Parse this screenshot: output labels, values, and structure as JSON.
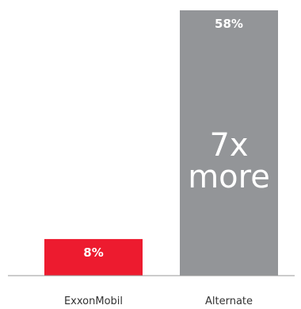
{
  "chart_data": {
    "type": "bar",
    "categories": [
      "ExxonMobil",
      "Alternate"
    ],
    "values": [
      8,
      58
    ],
    "value_labels": [
      "8%",
      "58%"
    ],
    "colors": [
      "#ed1b2f",
      "#939598"
    ],
    "annotation": {
      "line1": "7x",
      "line2": "more"
    },
    "title": "",
    "xlabel": "",
    "ylabel": "",
    "ylim": [
      0,
      58
    ],
    "grid": false,
    "legend": "none"
  }
}
